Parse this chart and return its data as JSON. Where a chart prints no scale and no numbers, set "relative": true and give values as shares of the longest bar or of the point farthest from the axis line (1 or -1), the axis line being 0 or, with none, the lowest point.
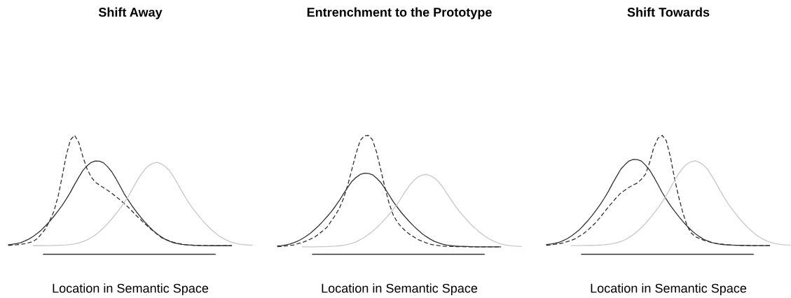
{
  "chart_data": [
    {
      "type": "line",
      "title": "Shift Away",
      "xlabel": "Location in Semantic Space",
      "relative": true,
      "categories": [
        null,
        null,
        null,
        null,
        null,
        null,
        null,
        null,
        null,
        null,
        null,
        null,
        null,
        null,
        null,
        null,
        null,
        null,
        null,
        null,
        null,
        null,
        null,
        null,
        null,
        null,
        null,
        null,
        null,
        null,
        null,
        null,
        null,
        null,
        null,
        null,
        null,
        null,
        null,
        null,
        null,
        null,
        null,
        null,
        null,
        null,
        null,
        null,
        null,
        null,
        null,
        null,
        null,
        null,
        null,
        null,
        null,
        null,
        null,
        null
      ],
      "series": [
        {
          "color": "#333333",
          "line_style": "solid",
          "values": [
            0.08,
            0.084,
            0.091,
            0.098,
            0.112,
            0.129,
            0.15,
            0.176,
            0.205,
            0.24,
            0.277,
            0.319,
            0.364,
            0.411,
            0.464,
            0.521,
            0.586,
            0.646,
            0.704,
            0.742,
            0.772,
            0.784,
            0.783,
            0.77,
            0.736,
            0.694,
            0.637,
            0.575,
            0.51,
            0.455,
            0.403,
            0.356,
            0.312,
            0.271,
            0.234,
            0.2,
            0.171,
            0.147,
            0.124,
            0.11,
            0.097,
            0.089,
            0.083,
            0.08,
            0.077,
            0.075,
            0.074,
            0.073,
            0.073,
            0.072,
            0.072,
            0.072,
            0.072,
            0.072,
            0.072,
            null,
            null,
            null,
            null,
            null
          ]
        },
        {
          "color": "#333333",
          "line_style": "dashed",
          "values": [
            0.075,
            0.077,
            0.08,
            0.084,
            0.089,
            0.098,
            0.108,
            0.132,
            0.171,
            0.216,
            0.282,
            0.36,
            0.483,
            0.652,
            0.833,
            0.961,
            1.0,
            0.943,
            0.823,
            0.721,
            0.652,
            0.607,
            0.583,
            0.56,
            0.538,
            0.514,
            0.486,
            0.459,
            0.427,
            0.396,
            0.36,
            0.323,
            0.291,
            0.258,
            0.226,
            0.197,
            0.168,
            0.141,
            0.126,
            0.112,
            0.1,
            0.092,
            0.085,
            0.08,
            0.078,
            0.076,
            0.075,
            0.074,
            0.073,
            0.073,
            0.072,
            0.072,
            0.072,
            0.072,
            0.072,
            null,
            null,
            null,
            null,
            null
          ]
        },
        {
          "color": "#c8c8c8",
          "line_style": "solid",
          "values": [
            null,
            null,
            null,
            null,
            null,
            null,
            0.072,
            0.072,
            0.072,
            0.073,
            0.073,
            0.074,
            0.075,
            0.077,
            0.079,
            0.082,
            0.087,
            0.095,
            0.106,
            0.12,
            0.14,
            0.162,
            0.19,
            0.222,
            0.257,
            0.297,
            0.339,
            0.384,
            0.434,
            0.486,
            0.548,
            0.611,
            0.667,
            0.713,
            0.748,
            0.765,
            0.773,
            0.76,
            0.737,
            0.702,
            0.649,
            0.59,
            0.527,
            0.469,
            0.416,
            0.369,
            0.324,
            0.283,
            0.246,
            0.21,
            0.181,
            0.154,
            0.133,
            0.115,
            0.101,
            0.092,
            0.085,
            0.081,
            0.078,
            0.076
          ]
        }
      ]
    },
    {
      "type": "line",
      "title": "Entrenchment to the Prototype",
      "xlabel": "Location in Semantic Space",
      "relative": true,
      "categories": [
        null,
        null,
        null,
        null,
        null,
        null,
        null,
        null,
        null,
        null,
        null,
        null,
        null,
        null,
        null,
        null,
        null,
        null,
        null,
        null,
        null,
        null,
        null,
        null,
        null,
        null,
        null,
        null,
        null,
        null,
        null,
        null,
        null,
        null,
        null,
        null,
        null,
        null,
        null,
        null,
        null,
        null,
        null,
        null,
        null,
        null,
        null,
        null,
        null,
        null,
        null,
        null,
        null,
        null,
        null,
        null,
        null,
        null,
        null,
        null
      ],
      "series": [
        {
          "color": "#333333",
          "line_style": "solid",
          "values": [
            0.07,
            0.073,
            0.079,
            0.086,
            0.098,
            0.112,
            0.131,
            0.153,
            0.178,
            0.209,
            0.241,
            0.277,
            0.316,
            0.357,
            0.403,
            0.453,
            0.509,
            0.562,
            0.612,
            0.645,
            0.671,
            0.682,
            0.68,
            0.669,
            0.64,
            0.604,
            0.554,
            0.5,
            0.443,
            0.396,
            0.35,
            0.31,
            0.272,
            0.236,
            0.204,
            0.174,
            0.149,
            0.127,
            0.108,
            0.096,
            0.085,
            0.077,
            0.073,
            0.069,
            0.067,
            0.066,
            0.065,
            0.064,
            0.063,
            0.063,
            0.063,
            0.063,
            0.063,
            0.063,
            0.063,
            null,
            null,
            null,
            null,
            null
          ]
        },
        {
          "color": "#333333",
          "line_style": "dashed",
          "values": [
            0.064,
            0.066,
            0.07,
            0.074,
            0.079,
            0.09,
            0.099,
            0.112,
            0.128,
            0.144,
            0.17,
            0.198,
            0.228,
            0.278,
            0.328,
            0.387,
            0.471,
            0.58,
            0.713,
            0.844,
            0.956,
            0.995,
            1.0,
            0.963,
            0.857,
            0.711,
            0.562,
            0.431,
            0.332,
            0.27,
            0.23,
            0.195,
            0.168,
            0.146,
            0.124,
            0.11,
            0.097,
            0.085,
            0.078,
            0.073,
            0.068,
            0.067,
            0.066,
            0.065,
            0.064,
            0.064,
            0.063,
            0.063,
            0.063,
            0.063,
            0.063,
            0.063,
            0.063,
            0.063,
            0.063,
            null,
            null,
            null,
            null,
            null
          ]
        },
        {
          "color": "#c8c8c8",
          "line_style": "solid",
          "values": [
            null,
            null,
            null,
            null,
            null,
            null,
            0.063,
            0.063,
            0.063,
            0.063,
            0.064,
            0.064,
            0.065,
            0.067,
            0.068,
            0.072,
            0.076,
            0.083,
            0.092,
            0.104,
            0.122,
            0.141,
            0.166,
            0.193,
            0.224,
            0.258,
            0.295,
            0.334,
            0.377,
            0.423,
            0.477,
            0.531,
            0.58,
            0.62,
            0.651,
            0.665,
            0.672,
            0.661,
            0.641,
            0.61,
            0.564,
            0.513,
            0.458,
            0.408,
            0.362,
            0.321,
            0.282,
            0.246,
            0.214,
            0.183,
            0.157,
            0.134,
            0.115,
            0.1,
            0.088,
            0.08,
            0.074,
            0.07,
            0.068,
            0.066
          ]
        }
      ]
    },
    {
      "type": "line",
      "title": "Shift Towards",
      "xlabel": "Location in Semantic Space",
      "relative": true,
      "categories": [
        null,
        null,
        null,
        null,
        null,
        null,
        null,
        null,
        null,
        null,
        null,
        null,
        null,
        null,
        null,
        null,
        null,
        null,
        null,
        null,
        null,
        null,
        null,
        null,
        null,
        null,
        null,
        null,
        null,
        null,
        null,
        null,
        null,
        null,
        null,
        null,
        null,
        null,
        null,
        null,
        null,
        null,
        null,
        null,
        null,
        null,
        null,
        null,
        null,
        null,
        null,
        null,
        null,
        null,
        null,
        null,
        null,
        null,
        null,
        null
      ],
      "series": [
        {
          "color": "#333333",
          "line_style": "solid",
          "values": [
            0.082,
            0.086,
            0.092,
            0.1,
            0.114,
            0.131,
            0.153,
            0.179,
            0.208,
            0.244,
            0.282,
            0.324,
            0.37,
            0.418,
            0.472,
            0.53,
            0.596,
            0.657,
            0.716,
            0.754,
            0.785,
            0.798,
            0.796,
            0.783,
            0.748,
            0.706,
            0.648,
            0.585,
            0.519,
            0.463,
            0.41,
            0.362,
            0.318,
            0.276,
            0.238,
            0.203,
            0.174,
            0.149,
            0.126,
            0.112,
            0.099,
            0.09,
            0.085,
            0.081,
            0.079,
            0.077,
            0.076,
            0.075,
            0.074,
            0.073,
            0.073,
            0.073,
            0.073,
            0.073,
            0.073,
            null,
            null,
            null,
            null,
            null
          ]
        },
        {
          "color": "#333333",
          "line_style": "dashed",
          "values": [
            0.075,
            0.079,
            0.084,
            0.089,
            0.095,
            0.106,
            0.117,
            0.131,
            0.153,
            0.175,
            0.203,
            0.236,
            0.269,
            0.311,
            0.355,
            0.399,
            0.439,
            0.48,
            0.516,
            0.54,
            0.563,
            0.583,
            0.599,
            0.632,
            0.676,
            0.776,
            0.903,
            0.976,
            1.0,
            0.954,
            0.817,
            0.634,
            0.482,
            0.35,
            0.241,
            0.179,
            0.148,
            0.133,
            0.119,
            0.108,
            0.098,
            0.092,
            0.087,
            0.083,
            0.08,
            0.078,
            0.076,
            0.075,
            0.075,
            0.074,
            0.073,
            0.073,
            0.073,
            0.073,
            0.073,
            null,
            null,
            null,
            null,
            null
          ]
        },
        {
          "color": "#c8c8c8",
          "line_style": "solid",
          "values": [
            null,
            null,
            null,
            null,
            null,
            null,
            0.073,
            0.073,
            0.073,
            0.074,
            0.075,
            0.075,
            0.076,
            0.078,
            0.08,
            0.084,
            0.089,
            0.097,
            0.108,
            0.122,
            0.142,
            0.165,
            0.194,
            0.225,
            0.261,
            0.302,
            0.345,
            0.391,
            0.441,
            0.495,
            0.558,
            0.621,
            0.679,
            0.725,
            0.761,
            0.778,
            0.786,
            0.773,
            0.75,
            0.714,
            0.66,
            0.601,
            0.536,
            0.477,
            0.423,
            0.376,
            0.33,
            0.288,
            0.25,
            0.214,
            0.184,
            0.156,
            0.135,
            0.117,
            0.103,
            0.093,
            0.086,
            0.082,
            0.079,
            0.077
          ]
        }
      ]
    }
  ]
}
